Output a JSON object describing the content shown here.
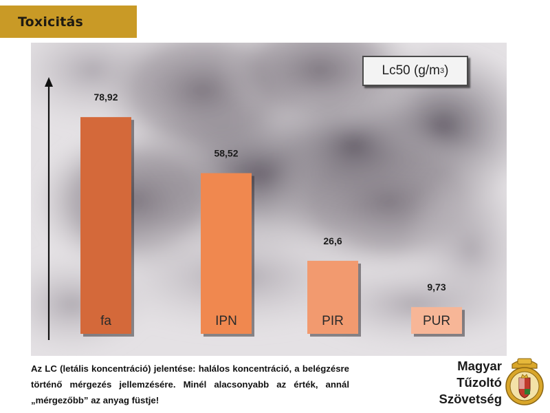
{
  "header": {
    "title": "Toxicitás"
  },
  "chart_data": {
    "type": "bar",
    "categories": [
      "fa",
      "IPN",
      "PIR",
      "PUR"
    ],
    "values": [
      78.92,
      58.52,
      26.6,
      9.73
    ],
    "value_labels": [
      "78,92",
      "58,52",
      "26,6",
      "9,73"
    ],
    "colors": [
      "#d4693a",
      "#f0884f",
      "#f29a6f",
      "#f7b697"
    ],
    "legend_label": "Lc50 (g/m",
    "legend_unit_sup": "3",
    "legend_label_close": ")",
    "ylim": [
      0,
      95
    ],
    "axis_arrow": true
  },
  "caption": {
    "text": "Az LC (letális koncentráció) jelentése: halálos koncentráció, a belégzésre történő mérgezés jellemzésére. Minél alacso­nyabb az érték, annál „mérgezőbb” az anyag füstje!"
  },
  "logo": {
    "line1": "Magyar",
    "line2": "Tűzoltó",
    "line3": "Szövetség"
  }
}
